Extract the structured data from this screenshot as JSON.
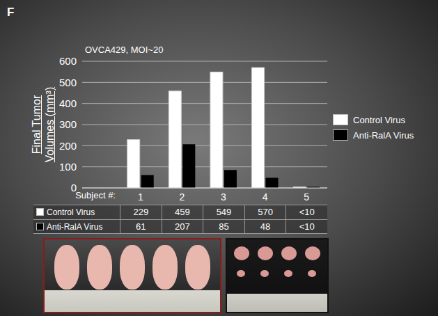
{
  "chart_data": {
    "type": "bar",
    "panel": "F",
    "title": "OVCA429, MOI~20",
    "y_label": "Final Tumor Volumes (mm³)",
    "x_label": "Subject #:",
    "categories": [
      "1",
      "2",
      "3",
      "4",
      "5"
    ],
    "series": [
      {
        "name": "Control Virus",
        "color": "#ffffff",
        "values": [
          229,
          459,
          549,
          570,
          5
        ],
        "value_labels": [
          "229",
          "459",
          "549",
          "570",
          "<10"
        ]
      },
      {
        "name": "Anti-RalA Virus",
        "color": "#000000",
        "values": [
          61,
          207,
          85,
          48,
          5
        ],
        "value_labels": [
          "61",
          "207",
          "85",
          "48",
          "<10"
        ]
      }
    ],
    "ylim": [
      0,
      600
    ],
    "yticks": [
      0,
      100,
      200,
      300,
      400,
      500,
      600
    ],
    "grid": true,
    "legend": "right",
    "data_labels": false
  }
}
